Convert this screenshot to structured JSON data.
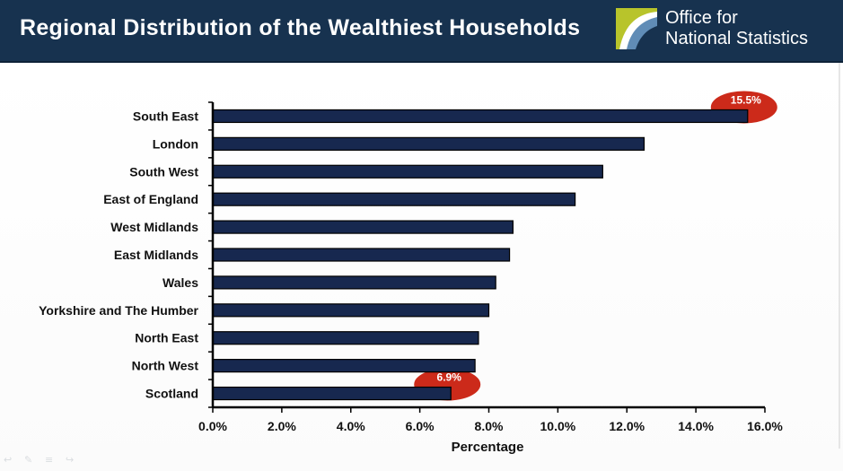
{
  "header": {
    "title": "Regional Distribution of  the Wealthiest Households",
    "logo_line1": "Office for",
    "logo_line2": "National Statistics"
  },
  "colors": {
    "header_bg": "#17324f",
    "bar_fill": "#17284f",
    "callout_fill": "#cc2a1a",
    "logo_green": "#b8c42b"
  },
  "chart_data": {
    "type": "bar",
    "orientation": "horizontal",
    "categories": [
      "South East",
      "London",
      "South West",
      "East of England",
      "West Midlands",
      "East Midlands",
      "Wales",
      "Yorkshire and The Humber",
      "North East",
      "North West",
      "Scotland"
    ],
    "values": [
      15.5,
      12.5,
      11.3,
      10.5,
      8.7,
      8.6,
      8.2,
      8.0,
      7.7,
      7.6,
      6.9
    ],
    "xlabel": "Percentage",
    "ylabel": "",
    "xlim": [
      0,
      16
    ],
    "xticks": [
      "0.0%",
      "2.0%",
      "4.0%",
      "6.0%",
      "8.0%",
      "10.0%",
      "12.0%",
      "14.0%",
      "16.0%"
    ],
    "grid": false,
    "callouts": [
      {
        "category": "South East",
        "label": "15.5%"
      },
      {
        "category": "Scotland",
        "label": "6.9%"
      }
    ]
  },
  "viewer_controls": [
    {
      "icon": "previous-icon",
      "glyph": "↩"
    },
    {
      "icon": "pen-icon",
      "glyph": "✎"
    },
    {
      "icon": "menu-icon",
      "glyph": "≡"
    },
    {
      "icon": "next-icon",
      "glyph": "↪"
    }
  ]
}
